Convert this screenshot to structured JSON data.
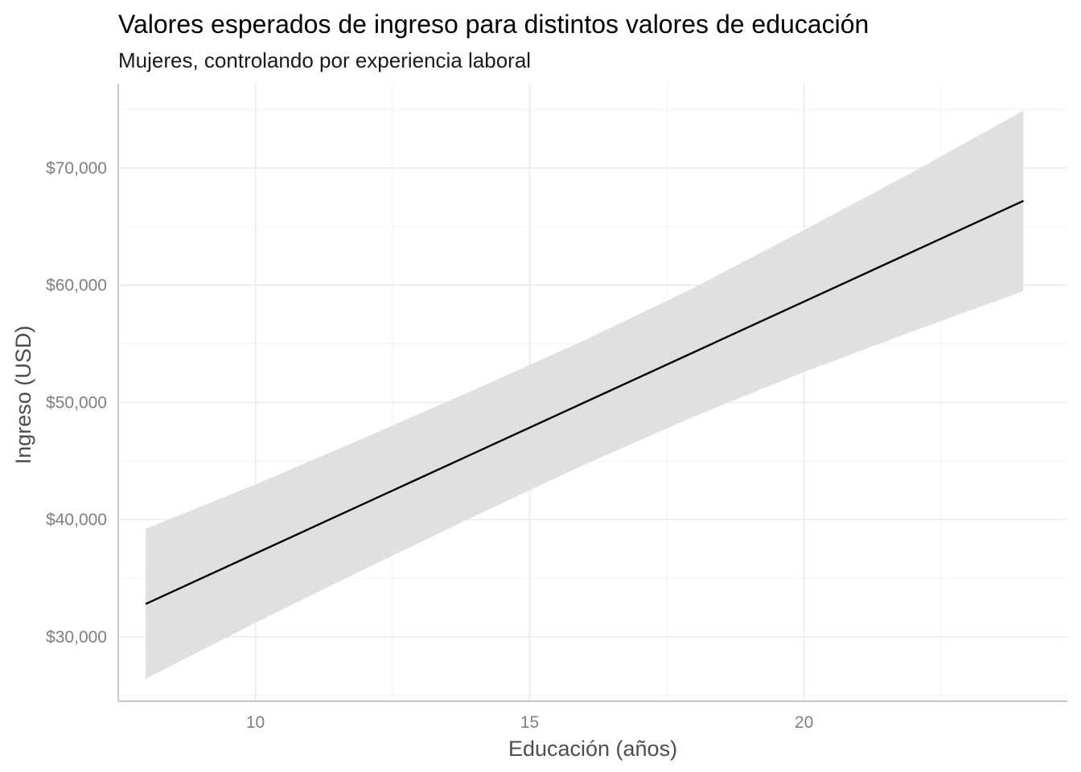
{
  "chart_data": {
    "type": "line",
    "title": "Valores esperados de ingreso para distintos valores de educación",
    "subtitle": "Mujeres, controlando por experiencia laboral",
    "xlabel": "Educación (años)",
    "ylabel": "Ingreso (USD)",
    "xlim": [
      7.5,
      24.8
    ],
    "ylim": [
      24500,
      77200
    ],
    "x_ticks": [
      10,
      15,
      20
    ],
    "x_tick_labels": [
      "10",
      "15",
      "20"
    ],
    "y_ticks": [
      30000,
      40000,
      50000,
      60000,
      70000
    ],
    "y_tick_labels": [
      "$30,000",
      "$40,000",
      "$50,000",
      "$60,000",
      "$70,000"
    ],
    "grid": true,
    "series": [
      {
        "x": [
          8,
          10,
          12,
          14,
          16,
          18,
          20,
          22,
          24
        ],
        "y": [
          32800,
          37100,
          41400,
          45700,
          50000,
          54300,
          58600,
          62900,
          67200
        ],
        "lower": [
          26400,
          31200,
          35800,
          40300,
          44700,
          48800,
          52600,
          56100,
          59500
        ],
        "upper": [
          39200,
          43000,
          47000,
          51100,
          55300,
          59800,
          64700,
          69700,
          74900
        ],
        "line_color": "#000000",
        "band_color": "#e0e0e0"
      }
    ]
  }
}
